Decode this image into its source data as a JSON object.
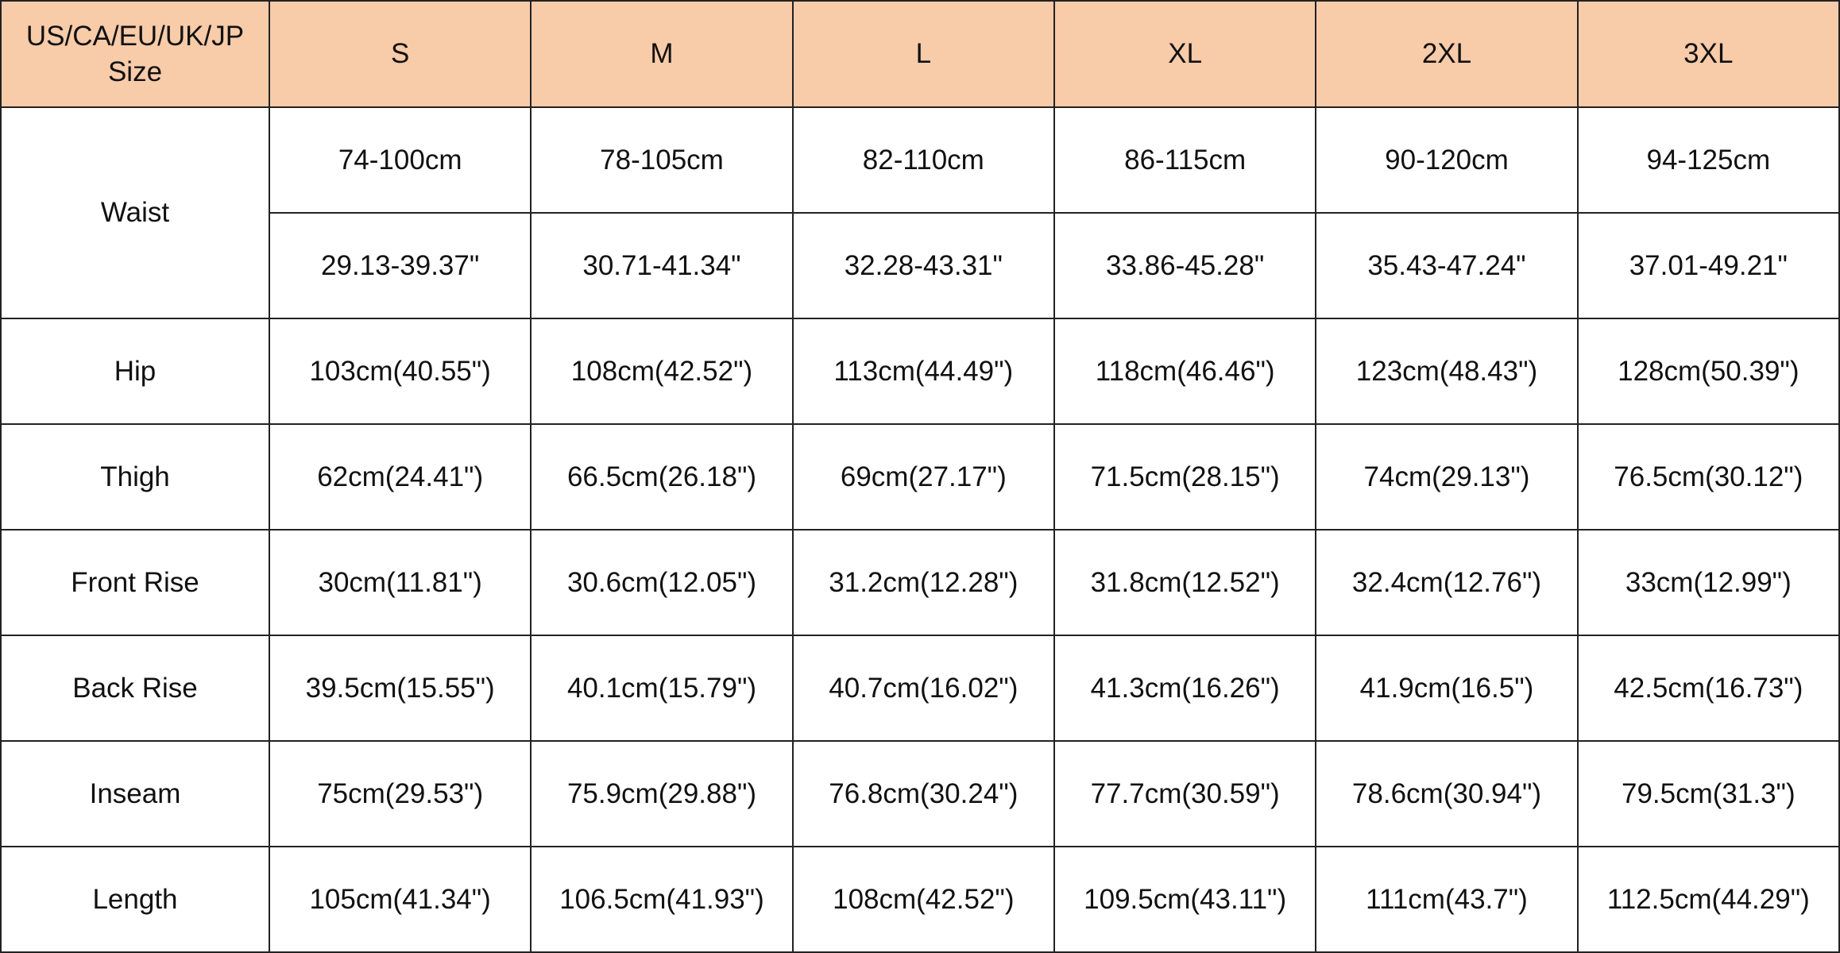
{
  "table": {
    "header": {
      "label": "US/CA/EU/UK/JP Size",
      "sizes": [
        "S",
        "M",
        "L",
        "XL",
        "2XL",
        "3XL"
      ]
    },
    "rows": [
      {
        "label": "Waist",
        "lines": [
          [
            "74-100cm",
            "78-105cm",
            "82-110cm",
            "86-115cm",
            "90-120cm",
            "94-125cm"
          ],
          [
            "29.13-39.37\"",
            "30.71-41.34\"",
            "32.28-43.31\"",
            "33.86-45.28\"",
            "35.43-47.24\"",
            "37.01-49.21\""
          ]
        ]
      },
      {
        "label": "Hip",
        "lines": [
          [
            "103cm(40.55\")",
            "108cm(42.52\")",
            "113cm(44.49\")",
            "118cm(46.46\")",
            "123cm(48.43\")",
            "128cm(50.39\")"
          ]
        ]
      },
      {
        "label": "Thigh",
        "lines": [
          [
            "62cm(24.41\")",
            "66.5cm(26.18\")",
            "69cm(27.17\")",
            "71.5cm(28.15\")",
            "74cm(29.13\")",
            "76.5cm(30.12\")"
          ]
        ]
      },
      {
        "label": "Front Rise",
        "lines": [
          [
            "30cm(11.81\")",
            "30.6cm(12.05\")",
            "31.2cm(12.28\")",
            "31.8cm(12.52\")",
            "32.4cm(12.76\")",
            "33cm(12.99\")"
          ]
        ]
      },
      {
        "label": "Back Rise",
        "lines": [
          [
            "39.5cm(15.55\")",
            "40.1cm(15.79\")",
            "40.7cm(16.02\")",
            "41.3cm(16.26\")",
            "41.9cm(16.5\")",
            "42.5cm(16.73\")"
          ]
        ]
      },
      {
        "label": "Inseam",
        "lines": [
          [
            "75cm(29.53\")",
            "75.9cm(29.88\")",
            "76.8cm(30.24\")",
            "77.7cm(30.59\")",
            "78.6cm(30.94\")",
            "79.5cm(31.3\")"
          ]
        ]
      },
      {
        "label": "Length",
        "lines": [
          [
            "105cm(41.34\")",
            "106.5cm(41.93\")",
            "108cm(42.52\")",
            "109.5cm(43.11\")",
            "111cm(43.7\")",
            "112.5cm(44.29\")"
          ]
        ]
      }
    ]
  }
}
